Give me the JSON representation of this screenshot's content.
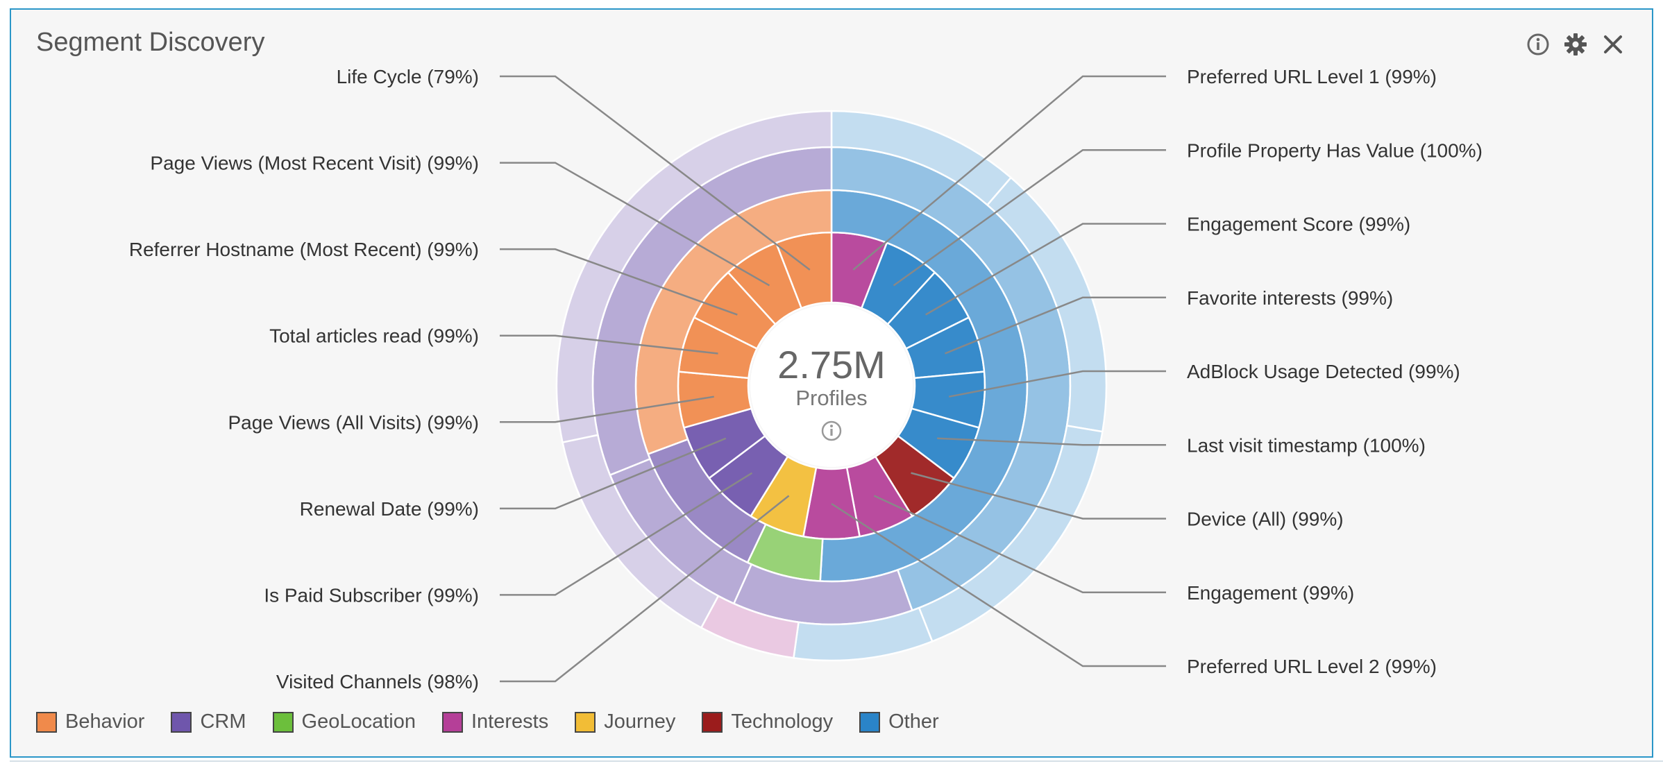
{
  "panel": {
    "title": "Segment Discovery",
    "icons": [
      "info-icon",
      "gear-icon",
      "close-icon"
    ]
  },
  "chart_data": {
    "type": "sunburst",
    "center_value": "2.75M",
    "center_label": "Profiles",
    "colors": {
      "Behavior": "#f08a4b",
      "CRM": "#6f56ac",
      "GeoLocation": "#6cbf3c",
      "Interests": "#b53f98",
      "Journey": "#f2bd36",
      "Technology": "#9b1c1c",
      "Other": "#2a84c8"
    },
    "legend": [
      "Behavior",
      "CRM",
      "GeoLocation",
      "Interests",
      "Journey",
      "Technology",
      "Other"
    ],
    "segments": [
      {
        "label": "Preferred URL Level 1 (99%)",
        "category": "Interests"
      },
      {
        "label": "Profile Property Has Value (100%)",
        "category": "Other"
      },
      {
        "label": "Engagement Score (99%)",
        "category": "Other"
      },
      {
        "label": "Favorite interests (99%)",
        "category": "Other"
      },
      {
        "label": "AdBlock Usage Detected (99%)",
        "category": "Other"
      },
      {
        "label": "Last visit timestamp (100%)",
        "category": "Other"
      },
      {
        "label": "Device (All) (99%)",
        "category": "Technology"
      },
      {
        "label": "Engagement (99%)",
        "category": "Interests"
      },
      {
        "label": "Preferred URL Level 2 (99%)",
        "category": "Interests"
      },
      {
        "label": "Visited Channels (98%)",
        "category": "Journey"
      },
      {
        "label": "Is Paid Subscriber (99%)",
        "category": "CRM"
      },
      {
        "label": "Renewal Date (99%)",
        "category": "CRM"
      },
      {
        "label": "Page Views (All Visits) (99%)",
        "category": "Behavior"
      },
      {
        "label": "Total articles read (99%)",
        "category": "Behavior"
      },
      {
        "label": "Referrer Hostname (Most Recent) (99%)",
        "category": "Behavior"
      },
      {
        "label": "Page Views (Most Recent Visit) (99%)",
        "category": "Behavior"
      },
      {
        "label": "Life Cycle (79%)",
        "category": "Behavior"
      }
    ],
    "outer_rings": [
      [
        {
          "category": "Other",
          "span": 8.3
        },
        {
          "category": "GeoLocation",
          "span": 1
        },
        {
          "category": "CRM",
          "span": 2
        },
        {
          "category": "Behavior",
          "span": 5
        }
      ],
      [
        {
          "category": "Other",
          "span": 7.3
        },
        {
          "category": "CRM",
          "span": 2
        },
        {
          "category": "CRM",
          "span": 2
        },
        {
          "category": "CRM",
          "span": 5.1
        }
      ],
      [
        {
          "category": "Other",
          "span": 1.8
        },
        {
          "category": "Other",
          "span": 2.6
        },
        {
          "category": "Other",
          "span": 2.6
        },
        {
          "category": "Other",
          "span": 1.3
        },
        {
          "category": "Interests",
          "span": 0.9
        },
        {
          "category": "CRM",
          "span": 2.2
        },
        {
          "category": "CRM",
          "span": 4.5
        }
      ]
    ]
  }
}
